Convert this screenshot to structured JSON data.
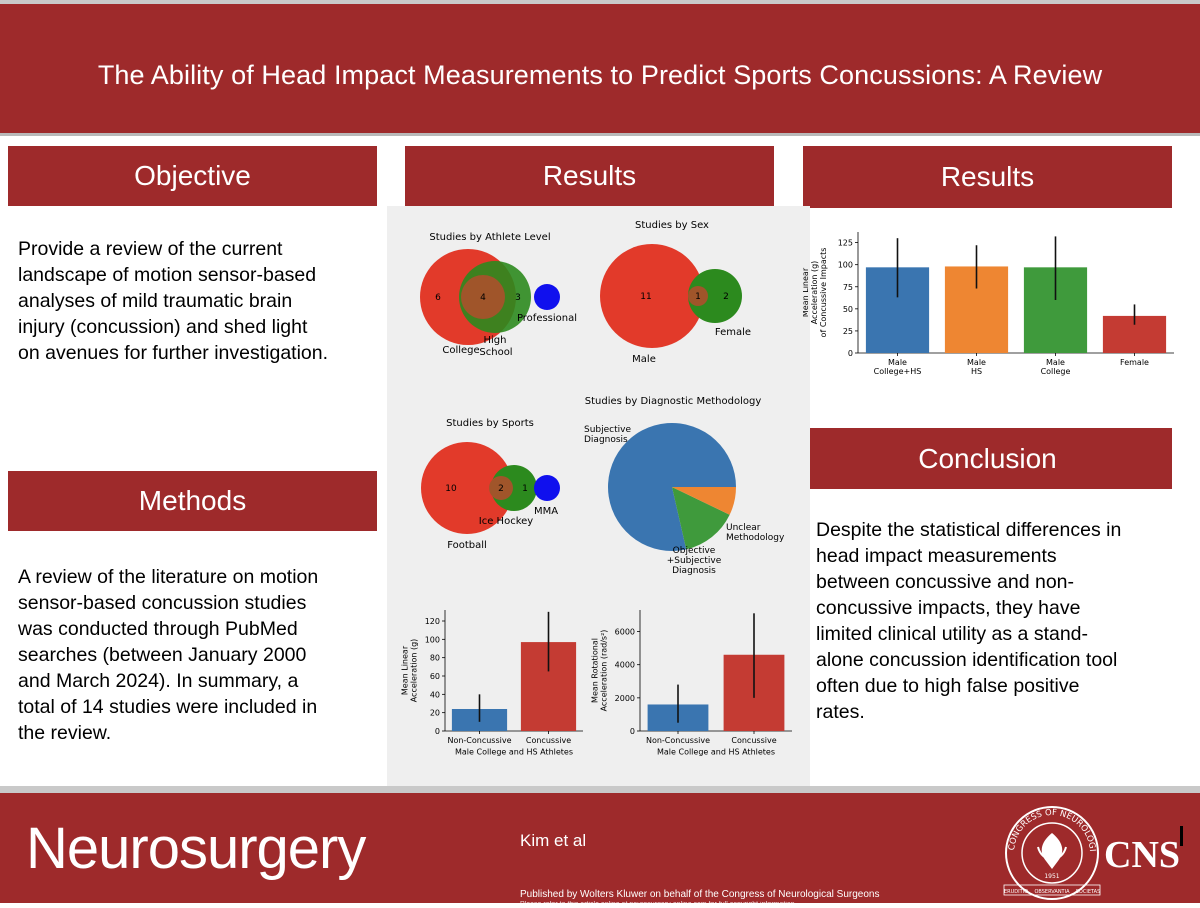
{
  "title": "The Ability of Head Impact Measurements to Predict Sports Concussions: A Review",
  "sections": {
    "objective": {
      "heading": "Objective",
      "lines": [
        "Provide a review of the current",
        "landscape of motion sensor-based",
        "analyses of mild traumatic brain",
        "injury (concussion) and shed light",
        "on avenues for further investigation."
      ]
    },
    "methods": {
      "heading": "Methods",
      "lines": [
        "A review of the literature on motion",
        "sensor-based concussion studies",
        "was conducted through PubMed",
        "searches (between January 2000",
        "and March 2024). In summary, a",
        "total of 14 studies were included in",
        "the review."
      ]
    },
    "results_mid": {
      "heading": "Results"
    },
    "results_right": {
      "heading": "Results"
    },
    "conclusion": {
      "heading": "Conclusion",
      "lines": [
        "Despite the statistical differences in",
        "head impact measurements",
        "between concussive and non-",
        "concussive impacts, they have",
        "limited clinical utility as a stand-",
        "alone concussion identification tool",
        "often due to high false positive",
        "rates."
      ]
    }
  },
  "footer": {
    "brand": "Neurosurgery",
    "authors": "Kim et al",
    "published": "Published by Wolters Kluwer on behalf of the Congress of Neurological Surgeons",
    "refer": "Please refer to this article online at neurosurgery-online.com for full copyright information",
    "seal_text": "CONGRESS OF NEUROLOGICAL SURGEONS",
    "seal_year": "1951",
    "seal_motto_left": "ERUDITIO",
    "seal_motto_mid": "OBSERVANTIA",
    "seal_motto_right": "SOCIETAS",
    "cns": "CNS"
  },
  "colors": {
    "brand_red": "#9e2a2b",
    "blue": "#3a75b0",
    "orange": "#ee8632",
    "green": "#3f9a3c",
    "red": "#c43b33",
    "venn_red": "#e23a2a",
    "venn_green": "#2c8a1e",
    "venn_blue": "#1010ee"
  },
  "chart_data": [
    {
      "type": "venn",
      "title": "Studies by Athlete Level",
      "sets": [
        {
          "label": "College",
          "only": 6
        },
        {
          "label": "High School",
          "only": 3
        },
        {
          "label": "Professional",
          "only": 0
        }
      ],
      "overlap": {
        "label": "College & High School",
        "value": 4
      },
      "set_labels": [
        "College",
        "High",
        "School",
        "Professional"
      ],
      "numbers": [
        "6",
        "4",
        "3"
      ]
    },
    {
      "type": "venn",
      "title": "Studies by Sex",
      "sets": [
        {
          "label": "Male",
          "only": 11
        },
        {
          "label": "Female",
          "only": 2
        }
      ],
      "overlap": {
        "label": "Male & Female",
        "value": 1
      },
      "set_labels": [
        "Male",
        "Female"
      ],
      "numbers": [
        "11",
        "1",
        "2"
      ]
    },
    {
      "type": "venn",
      "title": "Studies by Sports",
      "sets": [
        {
          "label": "Football",
          "only": 10
        },
        {
          "label": "Ice Hockey",
          "only": 1
        },
        {
          "label": "MMA",
          "only": 0
        }
      ],
      "overlap": {
        "label": "Football & Ice Hockey",
        "value": 2
      },
      "set_labels": [
        "Football",
        "Ice Hockey",
        "MMA"
      ],
      "numbers": [
        "10",
        "2",
        "1"
      ]
    },
    {
      "type": "pie",
      "title": "Studies by Diagnostic Methodology",
      "slices": [
        {
          "label_lines": [
            "Subjective",
            "Diagnosis"
          ],
          "value": 11,
          "color": "#3a75b0"
        },
        {
          "label_lines": [
            "Unclear",
            "Methodology"
          ],
          "value": 2,
          "color": "#3f9a3c"
        },
        {
          "label_lines": [
            "Objective",
            "+Subjective",
            "Diagnosis"
          ],
          "value": 1,
          "color": "#ee8632"
        }
      ]
    },
    {
      "type": "bar",
      "title": "",
      "ylabel_lines": [
        "Mean Linear",
        "Acceleration (g)",
        "of Concussive Impacts"
      ],
      "categories": [
        [
          "Male",
          "College+HS"
        ],
        [
          "Male",
          "HS"
        ],
        [
          "Male",
          "College"
        ],
        [
          "Female"
        ]
      ],
      "values": [
        97,
        98,
        97,
        42
      ],
      "err_low": [
        63,
        73,
        60,
        32
      ],
      "err_high": [
        130,
        122,
        132,
        55
      ],
      "colors": [
        "#3a75b0",
        "#ee8632",
        "#3f9a3c",
        "#c43b33"
      ],
      "ylim": [
        0,
        137
      ],
      "yticks": [
        "0",
        "25",
        "50",
        "75",
        "100",
        "125"
      ]
    },
    {
      "type": "bar",
      "title": "",
      "ylabel_lines": [
        "Mean Linear",
        "Acceleration (g)"
      ],
      "xlabel": "Male College and HS Athletes",
      "categories": [
        [
          "Non-Concussive"
        ],
        [
          "Concussive"
        ]
      ],
      "values": [
        24,
        97
      ],
      "err_low": [
        10,
        65
      ],
      "err_high": [
        40,
        130
      ],
      "colors": [
        "#3a75b0",
        "#c43b33"
      ],
      "ylim": [
        0,
        132
      ],
      "yticks": [
        "0",
        "20",
        "40",
        "60",
        "80",
        "100",
        "120"
      ]
    },
    {
      "type": "bar",
      "title": "",
      "ylabel_lines": [
        "Mean Rotational",
        "Acceleration (rad/s²)"
      ],
      "xlabel": "Male College and HS Athletes",
      "categories": [
        [
          "Non-Concussive"
        ],
        [
          "Concussive"
        ]
      ],
      "values": [
        1600,
        4600
      ],
      "err_low": [
        500,
        2000
      ],
      "err_high": [
        2800,
        7100
      ],
      "colors": [
        "#3a75b0",
        "#c43b33"
      ],
      "ylim": [
        0,
        7300
      ],
      "yticks": [
        "0",
        "2000",
        "4000",
        "6000"
      ]
    }
  ]
}
